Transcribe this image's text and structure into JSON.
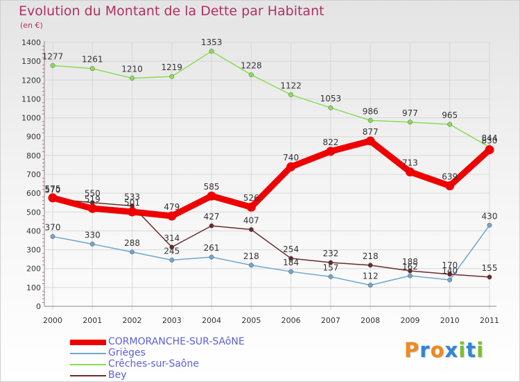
{
  "chart_data": {
    "type": "line",
    "title": "Evolution du Montant de la Dette par Habitant",
    "subtitle": "(en €)",
    "x": [
      "2000",
      "2001",
      "2002",
      "2003",
      "2004",
      "2005",
      "2006",
      "2007",
      "2008",
      "2009",
      "2010",
      "2011"
    ],
    "ylim": [
      0,
      1400
    ],
    "yticks": [
      0,
      100,
      200,
      300,
      400,
      500,
      600,
      700,
      800,
      900,
      1000,
      1100,
      1200,
      1300,
      1400
    ],
    "grid": true,
    "legend_position": "bottom-left",
    "series": [
      {
        "name": "CORMORANCHE-SUR-SAôNE",
        "color": "#ee0000",
        "values": [
          575,
          519,
          501,
          479,
          585,
          526,
          740,
          822,
          877,
          713,
          639,
          830
        ]
      },
      {
        "name": "Grièges",
        "color": "#6ea6d0",
        "values": [
          370,
          330,
          288,
          245,
          261,
          218,
          184,
          157,
          112,
          162,
          140,
          430
        ]
      },
      {
        "name": "Crêches-sur-Saône",
        "color": "#88dd55",
        "values": [
          1277,
          1261,
          1210,
          1219,
          1353,
          1228,
          1122,
          1053,
          986,
          977,
          965,
          844
        ]
      },
      {
        "name": "Bey",
        "color": "#6b2a2a",
        "values": [
          570,
          550,
          533,
          314,
          427,
          407,
          254,
          232,
          218,
          188,
          170,
          155
        ]
      }
    ]
  },
  "logo": {
    "letters": [
      "P",
      "r",
      "o",
      "x",
      "i",
      "t",
      "i"
    ],
    "colors": [
      "#f08a1c",
      "#2f86d9",
      "#f08a1c",
      "#2f86d9",
      "#7bbf2a",
      "#2f86d9",
      "#7bbf2a"
    ]
  }
}
